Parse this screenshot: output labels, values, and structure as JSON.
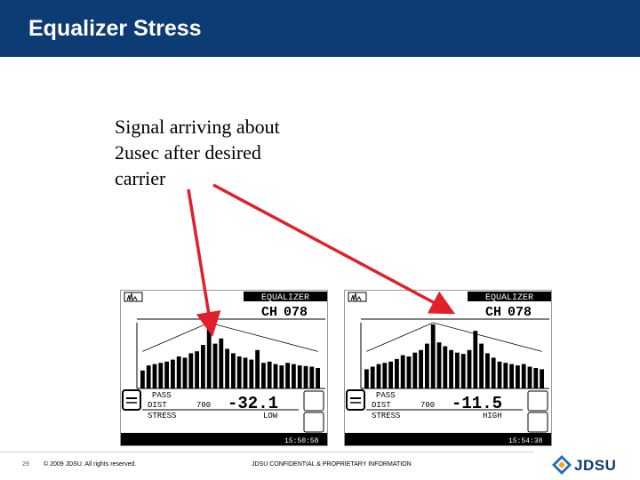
{
  "slide": {
    "title": "Equalizer Stress",
    "caption_lines": [
      "Signal arriving about",
      "2usec after desired",
      "carrier"
    ],
    "page_number": "29",
    "copyright": "© 2009 JDSU. All rights reserved.",
    "confidential": "JDSU CONFIDENTIAL & PROPRIETARY INFORMATION",
    "logo_text": "JDSU",
    "header_color": "#0d3b73",
    "arrow_color": "#e0202a"
  },
  "screens": [
    {
      "mode_label": "EQUALIZER",
      "channel_label": "CH",
      "channel": "078",
      "pass_label": "PASS",
      "dist_label": "DIST",
      "dist_value": "700",
      "reading": "-32.1",
      "stress_label": "STRESS",
      "stress_value": "LOW",
      "time": "15:50:58",
      "taps": [
        0.28,
        0.36,
        0.38,
        0.4,
        0.42,
        0.45,
        0.5,
        0.48,
        0.55,
        0.58,
        0.68,
        1.0,
        0.7,
        0.78,
        0.62,
        0.55,
        0.5,
        0.48,
        0.45,
        0.6,
        0.4,
        0.42,
        0.38,
        0.36,
        0.4,
        0.38,
        0.36,
        0.35,
        0.34,
        0.32
      ]
    },
    {
      "mode_label": "EQUALIZER",
      "channel_label": "CH",
      "channel": "078",
      "pass_label": "PASS",
      "dist_label": "DIST",
      "dist_value": "700",
      "reading": "-11.5",
      "stress_label": "STRESS",
      "stress_value": "HIGH",
      "time": "15:54:38",
      "taps": [
        0.3,
        0.34,
        0.38,
        0.4,
        0.42,
        0.46,
        0.52,
        0.5,
        0.56,
        0.6,
        0.7,
        1.0,
        0.72,
        0.66,
        0.6,
        0.56,
        0.54,
        0.6,
        0.9,
        0.7,
        0.55,
        0.48,
        0.42,
        0.4,
        0.38,
        0.36,
        0.38,
        0.34,
        0.32,
        0.3
      ]
    }
  ]
}
